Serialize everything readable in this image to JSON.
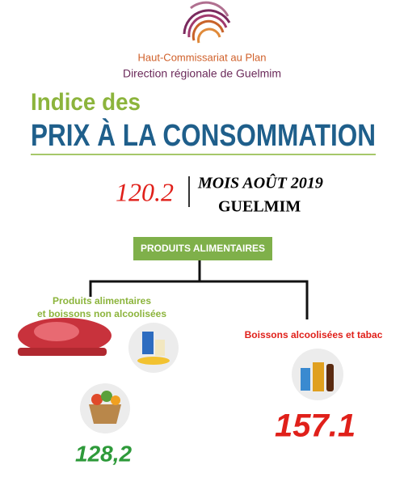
{
  "header": {
    "organization": "Haut-Commissariat au Plan",
    "region": "Direction régionale de Guelmim"
  },
  "title": {
    "line1": "Indice des",
    "line2": "PRIX À LA CONSOMMATION"
  },
  "index": {
    "value": "120.2",
    "period": "MOIS AOÛT 2019",
    "place": "GUELMIM"
  },
  "tree": {
    "root": "PRODUITS ALIMENTAIRES",
    "children": [
      {
        "label_lines": [
          "Produits alimentaires",
          "et boissons non alcoolisées"
        ],
        "value": "128,2"
      },
      {
        "label_lines": [
          "Boissons alcoolisées et tabac"
        ],
        "value": "157.1"
      }
    ]
  }
}
